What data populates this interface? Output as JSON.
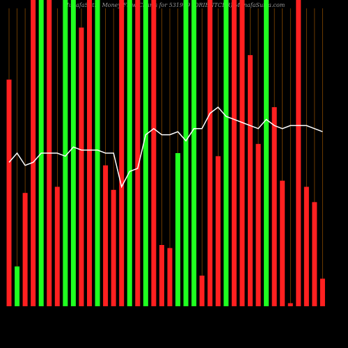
{
  "chart_data": {
    "type": "bar",
    "title": "MunafaSutra Money Flow Charts for 531999 (ORIENTCER) MunafaSutra.com",
    "ylim": [
      0,
      100
    ],
    "series": [
      {
        "values": [
          74,
          13,
          37,
          100,
          100,
          100,
          39,
          100,
          100,
          91,
          100,
          100,
          46,
          38,
          100,
          100,
          100,
          100,
          100,
          20,
          19,
          50,
          100,
          100,
          10,
          100,
          49,
          100,
          100,
          100,
          82,
          53,
          100,
          65,
          41,
          1,
          100,
          39,
          34,
          9
        ],
        "colors": [
          "#ff2020",
          "#20ff20",
          "#ff2020",
          "#ff2020",
          "#20ff20",
          "#ff2020",
          "#ff2020",
          "#20ff20",
          "#20ff20",
          "#ff2020",
          "#ff2020",
          "#20ff20",
          "#ff2020",
          "#ff2020",
          "#ff2020",
          "#20ff20",
          "#ff2020",
          "#20ff20",
          "#ff2020",
          "#ff2020",
          "#ff2020",
          "#20ff20",
          "#20ff20",
          "#20ff20",
          "#ff2020",
          "#ff2020",
          "#ff2020",
          "#20ff20",
          "#ff2020",
          "#ff2020",
          "#ff2020",
          "#ff2020",
          "#20ff20",
          "#ff2020",
          "#ff2020",
          "#ff2020",
          "#ff2020",
          "#ff2020",
          "#ff2020",
          "#ff2020"
        ]
      },
      {
        "type": "line",
        "color": "#ffffff",
        "values": [
          47,
          50,
          46,
          47,
          50,
          50,
          50,
          49,
          52,
          51,
          51,
          51,
          50,
          50,
          39,
          44,
          45,
          56,
          58,
          56,
          56,
          57,
          54,
          58,
          58,
          63,
          65,
          62,
          61,
          60,
          59,
          58,
          61,
          59,
          58,
          59,
          59,
          59,
          58,
          57
        ]
      }
    ]
  }
}
